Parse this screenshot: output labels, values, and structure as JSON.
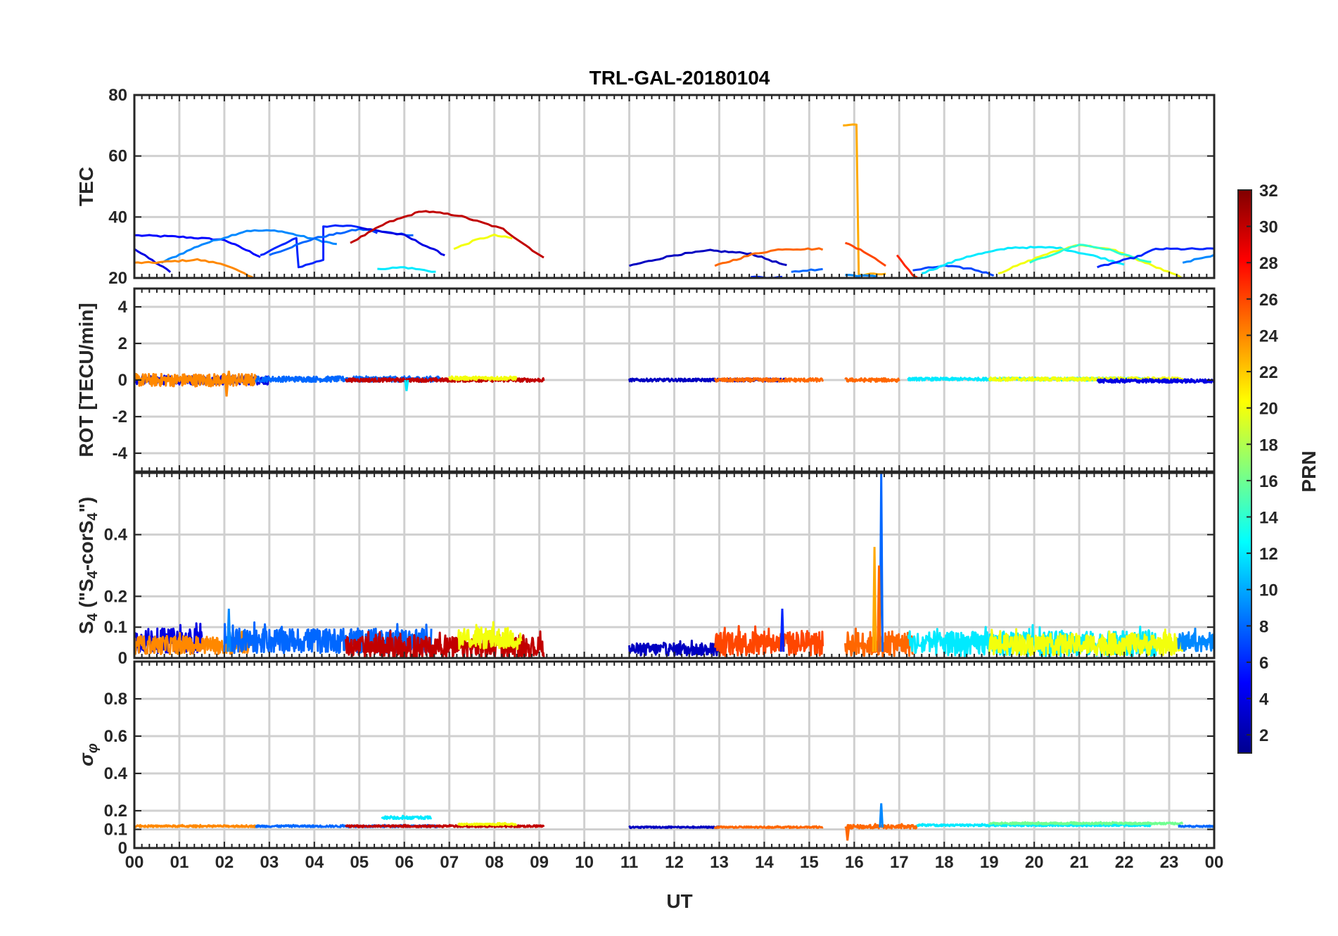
{
  "chart_data": {
    "type": "line",
    "title": "TRL-GAL-20180104",
    "xlabel": "UT",
    "xlim": [
      0,
      24
    ],
    "x_ticks": [
      "00",
      "01",
      "02",
      "03",
      "04",
      "05",
      "06",
      "07",
      "08",
      "09",
      "10",
      "11",
      "12",
      "13",
      "14",
      "15",
      "16",
      "17",
      "18",
      "19",
      "20",
      "21",
      "22",
      "23",
      "00"
    ],
    "colorbar": {
      "label": "PRN",
      "range": [
        1,
        32
      ],
      "ticks": [
        "2",
        "4",
        "6",
        "8",
        "10",
        "12",
        "14",
        "16",
        "18",
        "20",
        "22",
        "24",
        "26",
        "28",
        "30",
        "32"
      ]
    },
    "panels": [
      {
        "id": "tec",
        "ylabel": "TEC",
        "ylim": [
          20,
          80
        ],
        "yticks": [
          "20",
          "40",
          "60",
          "80"
        ],
        "tick_values": [
          20,
          40,
          60,
          80
        ],
        "series": [
          {
            "prn": 5,
            "points": [
              [
                0,
                34
              ],
              [
                1,
                33.5
              ],
              [
                2,
                32.5
              ],
              [
                2.8,
                27
              ]
            ]
          },
          {
            "prn": 4,
            "points": [
              [
                0,
                29.5
              ],
              [
                0.8,
                22
              ]
            ]
          },
          {
            "prn": 9,
            "points": [
              [
                0.6,
                25
              ],
              [
                1.5,
                31
              ],
              [
                2.5,
                35.5
              ],
              [
                3.2,
                35.5
              ],
              [
                4.5,
                31
              ]
            ]
          },
          {
            "prn": 24,
            "points": [
              [
                0,
                25
              ],
              [
                0.4,
                25
              ],
              [
                1.4,
                26
              ],
              [
                2,
                24.5
              ],
              [
                2.7,
                19.5
              ]
            ]
          },
          {
            "prn": 6,
            "points": [
              [
                2.8,
                27.5
              ],
              [
                3.6,
                33
              ],
              [
                3.65,
                23.5
              ],
              [
                4.2,
                26
              ],
              [
                4.2,
                37
              ],
              [
                4.9,
                37
              ],
              [
                5.4,
                35
              ]
            ]
          },
          {
            "prn": 8,
            "points": [
              [
                3.0,
                27.5
              ],
              [
                4.0,
                33
              ],
              [
                5.0,
                36
              ],
              [
                6.2,
                34
              ]
            ]
          },
          {
            "prn": 4,
            "points": [
              [
                5.0,
                36.5
              ],
              [
                6.0,
                34
              ],
              [
                6.9,
                27.5
              ]
            ]
          },
          {
            "prn": 30,
            "points": [
              [
                4.8,
                31.5
              ],
              [
                5.6,
                38
              ],
              [
                6.4,
                42
              ],
              [
                7.2,
                40.5
              ],
              [
                8.2,
                36
              ],
              [
                9.1,
                26.5
              ]
            ]
          },
          {
            "prn": 12,
            "points": [
              [
                5.4,
                23
              ],
              [
                6.0,
                23.5
              ],
              [
                6.7,
                22
              ]
            ]
          },
          {
            "prn": 20,
            "points": [
              [
                7.1,
                29.5
              ],
              [
                7.6,
                32.5
              ],
              [
                8.0,
                34
              ],
              [
                8.4,
                33
              ]
            ]
          },
          {
            "prn": 3,
            "points": [
              [
                11.0,
                24
              ],
              [
                12.0,
                27.5
              ],
              [
                12.8,
                29
              ],
              [
                13.7,
                28
              ],
              [
                14.5,
                24
              ]
            ]
          },
          {
            "prn": 25,
            "points": [
              [
                12.9,
                24
              ],
              [
                13.8,
                28
              ],
              [
                14.4,
                29.5
              ],
              [
                15.3,
                29.5
              ]
            ]
          },
          {
            "prn": 6,
            "points": [
              [
                13.7,
                20.3
              ],
              [
                14.4,
                20.2
              ]
            ]
          },
          {
            "prn": 8,
            "points": [
              [
                14.6,
                22
              ],
              [
                15.3,
                23
              ]
            ]
          },
          {
            "prn": 23,
            "points": [
              [
                15.75,
                70
              ],
              [
                16.05,
                70.5
              ],
              [
                16.1,
                21
              ],
              [
                16.7,
                21.5
              ]
            ]
          },
          {
            "prn": 26,
            "points": [
              [
                15.8,
                31.5
              ],
              [
                16.3,
                28
              ],
              [
                16.7,
                24
              ]
            ]
          },
          {
            "prn": 9,
            "points": [
              [
                15.8,
                21
              ],
              [
                16.5,
                20.5
              ]
            ]
          },
          {
            "prn": 27,
            "points": [
              [
                16.95,
                27.5
              ],
              [
                17.3,
                21
              ],
              [
                17.4,
                20
              ]
            ]
          },
          {
            "prn": 7,
            "points": [
              [
                17.3,
                22.5
              ],
              [
                18.0,
                24
              ],
              [
                18.6,
                23
              ],
              [
                19.1,
                21
              ]
            ]
          },
          {
            "prn": 12,
            "points": [
              [
                17.5,
                21.5
              ],
              [
                18.5,
                27
              ],
              [
                19.5,
                30
              ],
              [
                20.5,
                30
              ],
              [
                21.4,
                27
              ],
              [
                22.0,
                24.5
              ]
            ]
          },
          {
            "prn": 20,
            "points": [
              [
                19.2,
                21.5
              ],
              [
                20.2,
                27.5
              ],
              [
                21.0,
                31
              ],
              [
                21.8,
                29
              ],
              [
                23.3,
                20
              ]
            ]
          },
          {
            "prn": 14,
            "points": [
              [
                19.9,
                25
              ],
              [
                21.0,
                31
              ],
              [
                21.6,
                29.5
              ],
              [
                22.6,
                25
              ]
            ]
          },
          {
            "prn": 6,
            "points": [
              [
                21.4,
                23.5
              ],
              [
                22.3,
                27
              ],
              [
                22.7,
                29.5
              ],
              [
                24,
                29.5
              ]
            ]
          },
          {
            "prn": 9,
            "points": [
              [
                23.3,
                25
              ],
              [
                24,
                27.5
              ]
            ]
          }
        ]
      },
      {
        "id": "rot",
        "ylabel": "ROT [TECU/min]",
        "ylim": [
          -5,
          5
        ],
        "yticks": [
          "-4",
          "-2",
          "0",
          "2",
          "4"
        ],
        "tick_values": [
          -4,
          -2,
          0,
          2,
          4
        ],
        "series": [
          {
            "prn": 4,
            "x": [
              0,
              3.0
            ],
            "base": 0,
            "amp": 0.25
          },
          {
            "prn": 24,
            "x": [
              0,
              2.7
            ],
            "base": 0,
            "amp": 0.35
          },
          {
            "prn": 8,
            "x": [
              2.7,
              6.8
            ],
            "base": 0.05,
            "amp": 0.15
          },
          {
            "prn": 30,
            "x": [
              4.7,
              9.1
            ],
            "base": 0,
            "amp": 0.1
          },
          {
            "prn": 20,
            "x": [
              7.0,
              8.5
            ],
            "base": 0.1,
            "amp": 0.1
          },
          {
            "prn": 3,
            "x": [
              11.0,
              14.5
            ],
            "base": 0,
            "amp": 0.08
          },
          {
            "prn": 25,
            "x": [
              12.9,
              15.3
            ],
            "base": 0,
            "amp": 0.1
          },
          {
            "prn": 25,
            "x": [
              15.8,
              17.0
            ],
            "base": 0,
            "amp": 0.1
          },
          {
            "prn": 12,
            "x": [
              17.2,
              22.5
            ],
            "base": 0.05,
            "amp": 0.08
          },
          {
            "prn": 20,
            "x": [
              19.0,
              23.3
            ],
            "base": 0.05,
            "amp": 0.1
          },
          {
            "prn": 4,
            "x": [
              21.4,
              24
            ],
            "base": -0.05,
            "amp": 0.1
          }
        ],
        "spikes": [
          {
            "prn": 24,
            "x": 2.05,
            "y": -0.9
          },
          {
            "prn": 24,
            "x": 2.1,
            "y": 0.5
          },
          {
            "prn": 12,
            "x": 6.05,
            "y": -0.6
          }
        ]
      },
      {
        "id": "s4",
        "ylabel": "S4 (\"S4-corS4\")",
        "ylim": [
          0,
          0.6
        ],
        "yticks": [
          "0",
          "0.1",
          "0.2",
          "0.4"
        ],
        "tick_values": [
          0,
          0.1,
          0.2,
          0.4
        ],
        "series": [
          {
            "prn": 4,
            "x": [
              0,
              1.5
            ],
            "base": 0.04,
            "amp": 0.08
          },
          {
            "prn": 24,
            "x": [
              0,
              2.7
            ],
            "base": 0.03,
            "amp": 0.06
          },
          {
            "prn": 8,
            "x": [
              2.0,
              6.6
            ],
            "base": 0.04,
            "amp": 0.08
          },
          {
            "prn": 30,
            "x": [
              4.7,
              9.1
            ],
            "base": 0.02,
            "amp": 0.07
          },
          {
            "prn": 20,
            "x": [
              7.2,
              8.6
            ],
            "base": 0.05,
            "amp": 0.07
          },
          {
            "prn": 3,
            "x": [
              11.0,
              13.0
            ],
            "base": 0.02,
            "amp": 0.04
          },
          {
            "prn": 26,
            "x": [
              12.9,
              15.3
            ],
            "base": 0.03,
            "amp": 0.08
          },
          {
            "prn": 25,
            "x": [
              15.8,
              17.3
            ],
            "base": 0.03,
            "amp": 0.08
          },
          {
            "prn": 12,
            "x": [
              17.2,
              22.7
            ],
            "base": 0.03,
            "amp": 0.08
          },
          {
            "prn": 20,
            "x": [
              19.0,
              23.3
            ],
            "base": 0.03,
            "amp": 0.07
          },
          {
            "prn": 9,
            "x": [
              23.2,
              24
            ],
            "base": 0.04,
            "amp": 0.06
          }
        ],
        "spikes": [
          {
            "prn": 8,
            "x": 16.6,
            "y": 0.6
          },
          {
            "prn": 23,
            "x": 16.45,
            "y": 0.36
          },
          {
            "prn": 25,
            "x": 16.55,
            "y": 0.3
          },
          {
            "prn": 6,
            "x": 14.4,
            "y": 0.16
          },
          {
            "prn": 9,
            "x": 2.1,
            "y": 0.16
          }
        ]
      },
      {
        "id": "sigma",
        "ylabel": "σφ",
        "ylim": [
          0,
          1
        ],
        "yticks": [
          "0",
          "0.1",
          "0.2",
          "0.4",
          "0.6",
          "0.8"
        ],
        "tick_values": [
          0,
          0.1,
          0.2,
          0.4,
          0.6,
          0.8
        ],
        "series": [
          {
            "prn": 24,
            "x": [
              0,
              2.7
            ],
            "base": 0.115,
            "amp": 0.01
          },
          {
            "prn": 8,
            "x": [
              2.7,
              6.8
            ],
            "base": 0.115,
            "amp": 0.01
          },
          {
            "prn": 30,
            "x": [
              4.7,
              9.1
            ],
            "base": 0.115,
            "amp": 0.01
          },
          {
            "prn": 12,
            "x": [
              5.5,
              6.6
            ],
            "base": 0.16,
            "amp": 0.015
          },
          {
            "prn": 20,
            "x": [
              7.2,
              8.5
            ],
            "base": 0.125,
            "amp": 0.01
          },
          {
            "prn": 3,
            "x": [
              11.0,
              13.0
            ],
            "base": 0.11,
            "amp": 0.008
          },
          {
            "prn": 25,
            "x": [
              12.9,
              15.3
            ],
            "base": 0.11,
            "amp": 0.008
          },
          {
            "prn": 25,
            "x": [
              15.8,
              17.4
            ],
            "base": 0.11,
            "amp": 0.02
          },
          {
            "prn": 12,
            "x": [
              17.4,
              22.6
            ],
            "base": 0.12,
            "amp": 0.01
          },
          {
            "prn": 16,
            "x": [
              19.0,
              23.3
            ],
            "base": 0.13,
            "amp": 0.01
          },
          {
            "prn": 8,
            "x": [
              23.2,
              24
            ],
            "base": 0.115,
            "amp": 0.008
          }
        ],
        "spikes": [
          {
            "prn": 25,
            "x": 15.85,
            "y": 0.04
          },
          {
            "prn": 9,
            "x": 16.6,
            "y": 0.24
          }
        ]
      }
    ]
  }
}
